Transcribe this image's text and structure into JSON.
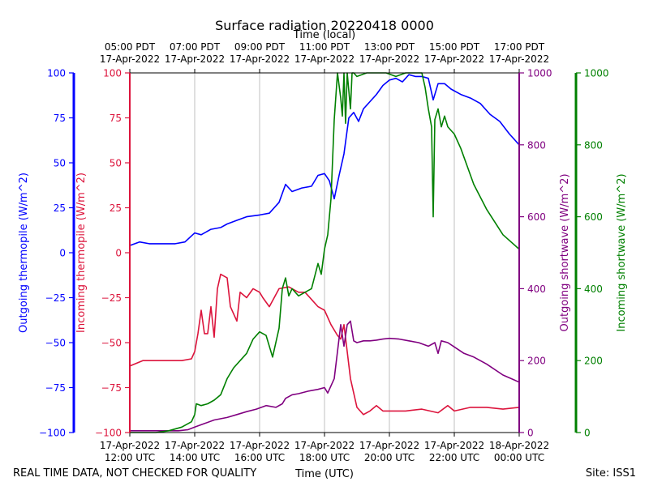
{
  "chart_data": {
    "type": "line",
    "title": "Surface radiation 20220418 0000",
    "top_axis_label": "Time (local)",
    "xlabel": "Time (UTC)",
    "footer_left": "REAL TIME DATA, NOT CHECKED FOR QUALITY",
    "footer_right": "Site: ISS1",
    "x_range_hours_utc": [
      12,
      24
    ],
    "bottom_ticks": [
      {
        "x": 12,
        "line1": "17-Apr-2022",
        "line2": "12:00 UTC"
      },
      {
        "x": 14,
        "line1": "17-Apr-2022",
        "line2": "14:00 UTC"
      },
      {
        "x": 16,
        "line1": "17-Apr-2022",
        "line2": "16:00 UTC"
      },
      {
        "x": 18,
        "line1": "17-Apr-2022",
        "line2": "18:00 UTC"
      },
      {
        "x": 20,
        "line1": "17-Apr-2022",
        "line2": "20:00 UTC"
      },
      {
        "x": 22,
        "line1": "17-Apr-2022",
        "line2": "22:00 UTC"
      },
      {
        "x": 24,
        "line1": "18-Apr-2022",
        "line2": "00:00 UTC"
      }
    ],
    "top_ticks": [
      {
        "x": 12,
        "line1": "05:00 PDT",
        "line2": "17-Apr-2022"
      },
      {
        "x": 14,
        "line1": "07:00 PDT",
        "line2": "17-Apr-2022"
      },
      {
        "x": 16,
        "line1": "09:00 PDT",
        "line2": "17-Apr-2022"
      },
      {
        "x": 18,
        "line1": "11:00 PDT",
        "line2": "17-Apr-2022"
      },
      {
        "x": 20,
        "line1": "13:00 PDT",
        "line2": "17-Apr-2022"
      },
      {
        "x": 22,
        "line1": "15:00 PDT",
        "line2": "17-Apr-2022"
      },
      {
        "x": 24,
        "line1": "17:00 PDT",
        "line2": "17-Apr-2022"
      }
    ],
    "grid": "vertical",
    "axes": [
      {
        "id": "outgoing_thermopile",
        "label": "Outgoing thermopile (W/m^2)",
        "color": "#0000ff",
        "ylim": [
          -100,
          100
        ],
        "ticks": [
          -100,
          -75,
          -50,
          -25,
          0,
          25,
          50,
          75,
          100
        ]
      },
      {
        "id": "incoming_thermopile",
        "label": "Incoming thermopile (W/m^2)",
        "color": "#dc143c",
        "ylim": [
          -100,
          100
        ],
        "ticks": [
          -100,
          -75,
          -50,
          -25,
          0,
          25,
          50,
          75,
          100
        ]
      },
      {
        "id": "outgoing_shortwave",
        "label": "Outgoing shortwave (W/m^2)",
        "color": "#800080",
        "ylim": [
          0,
          1000
        ],
        "ticks": [
          0,
          200,
          400,
          600,
          800,
          1000
        ]
      },
      {
        "id": "incoming_shortwave",
        "label": "Incoming shortwave (W/m^2)",
        "color": "#008000",
        "ylim": [
          0,
          1000
        ],
        "ticks": [
          0,
          200,
          400,
          600,
          800,
          1000
        ]
      }
    ],
    "series": [
      {
        "axis": "outgoing_thermopile",
        "color": "#0000ff",
        "x": [
          12.0,
          12.3,
          12.6,
          13.0,
          13.4,
          13.7,
          14.0,
          14.2,
          14.5,
          14.8,
          15.0,
          15.3,
          15.6,
          16.0,
          16.3,
          16.6,
          16.8,
          17.0,
          17.3,
          17.6,
          17.8,
          18.0,
          18.15,
          18.3,
          18.45,
          18.6,
          18.75,
          18.9,
          19.05,
          19.2,
          19.4,
          19.6,
          19.8,
          20.0,
          20.2,
          20.4,
          20.6,
          20.8,
          21.0,
          21.2,
          21.35,
          21.5,
          21.7,
          21.9,
          22.2,
          22.5,
          22.8,
          23.1,
          23.4,
          23.7,
          24.0
        ],
        "y": [
          4,
          6,
          5,
          5,
          5,
          6,
          11,
          10,
          13,
          14,
          16,
          18,
          20,
          21,
          22,
          28,
          38,
          34,
          36,
          37,
          43,
          44,
          40,
          30,
          43,
          55,
          75,
          78,
          73,
          80,
          84,
          88,
          93,
          96,
          97,
          95,
          99,
          98,
          98,
          97,
          85,
          94,
          94,
          91,
          88,
          86,
          83,
          77,
          73,
          66,
          60
        ]
      },
      {
        "axis": "incoming_thermopile",
        "color": "#dc143c",
        "x": [
          12.0,
          12.4,
          12.8,
          13.2,
          13.6,
          13.9,
          14.0,
          14.1,
          14.2,
          14.3,
          14.4,
          14.5,
          14.6,
          14.7,
          14.8,
          15.0,
          15.1,
          15.3,
          15.4,
          15.6,
          15.8,
          16.0,
          16.1,
          16.3,
          16.6,
          16.9,
          17.2,
          17.4,
          17.6,
          17.8,
          18.0,
          18.2,
          18.4,
          18.5,
          18.6,
          18.7,
          18.8,
          19.0,
          19.2,
          19.4,
          19.6,
          19.8,
          20.0,
          20.5,
          21.0,
          21.5,
          21.8,
          22.0,
          22.5,
          23.0,
          23.5,
          24.0
        ],
        "y": [
          -63,
          -60,
          -60,
          -60,
          -60,
          -59,
          -55,
          -45,
          -32,
          -45,
          -45,
          -30,
          -47,
          -20,
          -12,
          -14,
          -30,
          -38,
          -22,
          -25,
          -20,
          -22,
          -25,
          -30,
          -20,
          -19,
          -22,
          -22,
          -26,
          -30,
          -32,
          -40,
          -46,
          -48,
          -40,
          -55,
          -70,
          -86,
          -90,
          -88,
          -85,
          -88,
          -88,
          -88,
          -87,
          -89,
          -85,
          -88,
          -86,
          -86,
          -87,
          -86
        ]
      },
      {
        "axis": "outgoing_shortwave",
        "color": "#800080",
        "x": [
          12.0,
          12.5,
          13.0,
          13.5,
          13.8,
          14.0,
          14.3,
          14.6,
          15.0,
          15.3,
          15.6,
          15.9,
          16.2,
          16.5,
          16.7,
          16.8,
          17.0,
          17.2,
          17.5,
          17.8,
          18.0,
          18.1,
          18.3,
          18.5,
          18.6,
          18.7,
          18.8,
          18.9,
          19.0,
          19.2,
          19.4,
          19.6,
          19.8,
          20.0,
          20.3,
          20.6,
          20.9,
          21.2,
          21.4,
          21.5,
          21.6,
          21.8,
          22.0,
          22.3,
          22.6,
          23.0,
          23.5,
          24.0
        ],
        "y": [
          5,
          5,
          5,
          5,
          8,
          15,
          25,
          35,
          42,
          50,
          58,
          65,
          75,
          70,
          80,
          95,
          105,
          108,
          115,
          120,
          125,
          110,
          150,
          300,
          240,
          300,
          310,
          255,
          250,
          255,
          255,
          257,
          260,
          262,
          260,
          255,
          250,
          240,
          250,
          220,
          255,
          250,
          238,
          220,
          210,
          190,
          160,
          140
        ]
      },
      {
        "axis": "incoming_shortwave",
        "color": "#008000",
        "x": [
          12.0,
          12.4,
          12.8,
          13.2,
          13.6,
          13.9,
          14.0,
          14.05,
          14.2,
          14.4,
          14.6,
          14.8,
          15.0,
          15.2,
          15.4,
          15.6,
          15.8,
          16.0,
          16.2,
          16.4,
          16.6,
          16.7,
          16.8,
          16.9,
          17.0,
          17.2,
          17.4,
          17.6,
          17.8,
          17.9,
          18.0,
          18.1,
          18.2,
          18.3,
          18.4,
          18.5,
          18.55,
          18.6,
          18.65,
          18.7,
          18.8,
          18.85,
          18.9,
          19.0,
          19.3,
          19.6,
          19.9,
          20.2,
          20.5,
          20.8,
          21.0,
          21.1,
          21.2,
          21.3,
          21.35,
          21.4,
          21.5,
          21.6,
          21.7,
          21.8,
          22.0,
          22.2,
          22.4,
          22.6,
          23.0,
          23.5,
          24.0
        ],
        "y": [
          0,
          0,
          0,
          5,
          15,
          30,
          50,
          80,
          75,
          80,
          90,
          105,
          150,
          180,
          200,
          220,
          260,
          280,
          270,
          210,
          290,
          400,
          430,
          380,
          400,
          380,
          390,
          400,
          470,
          440,
          510,
          550,
          650,
          870,
          1000,
          930,
          880,
          1000,
          860,
          1000,
          900,
          1000,
          1000,
          990,
          1000,
          1000,
          1000,
          990,
          1000,
          1000,
          1000,
          960,
          900,
          850,
          600,
          870,
          900,
          850,
          880,
          850,
          830,
          790,
          740,
          690,
          620,
          550,
          510
        ]
      }
    ]
  }
}
